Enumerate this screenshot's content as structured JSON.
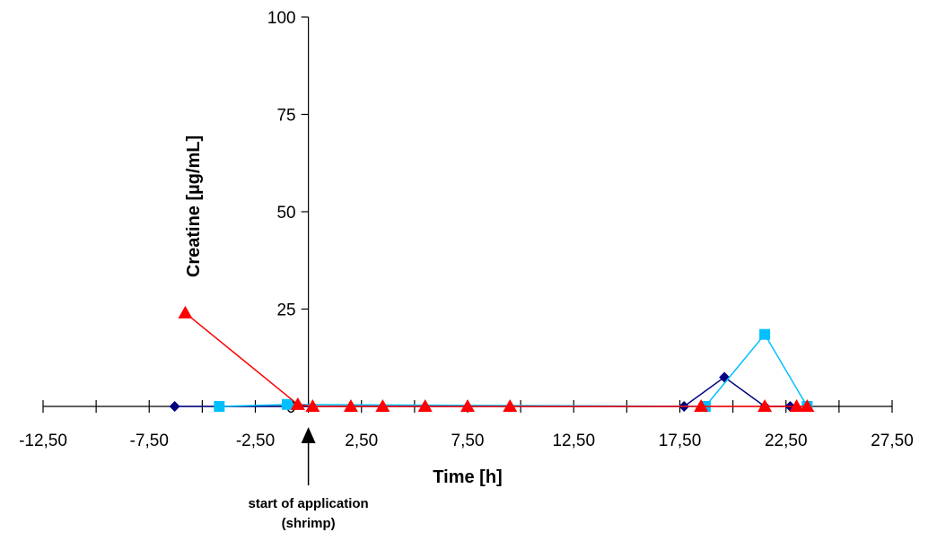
{
  "chart_data": {
    "type": "line",
    "title": "",
    "xlabel": "Time [h]",
    "ylabel": "Creatine [µg/mL]",
    "xlim": [
      -12.5,
      27.5
    ],
    "ylim": [
      0,
      100
    ],
    "x_ticks": [
      -12.5,
      -7.5,
      -2.5,
      2.5,
      7.5,
      12.5,
      17.5,
      22.5,
      27.5
    ],
    "x_tick_labels": [
      "-12,50",
      "-7,50",
      "-2,50",
      "2,50",
      "7,50",
      "12,50",
      "17,50",
      "22,50",
      "27,50"
    ],
    "x_minor_ticks": [
      -10,
      -5,
      0,
      5,
      10,
      15,
      20,
      25
    ],
    "y_ticks": [
      0,
      25,
      50,
      75,
      100
    ],
    "y_tick_labels": [
      "0",
      "25",
      "50",
      "75",
      "100"
    ],
    "grid": false,
    "legend": "none",
    "series": [
      {
        "color": "#000080",
        "marker": "diamond",
        "x": [
          -6.3,
          17.7,
          19.6,
          21.5,
          22.7
        ],
        "y": [
          0,
          0,
          7.5,
          0,
          0
        ]
      },
      {
        "color": "#00BFFF",
        "marker": "square",
        "x": [
          -4.2,
          -1.0,
          18.7,
          21.5,
          23.5
        ],
        "y": [
          0,
          0.5,
          0,
          18.5,
          0
        ]
      },
      {
        "color": "#FF0000",
        "marker": "triangle",
        "x": [
          -5.8,
          -0.5,
          0.2,
          2.0,
          3.5,
          5.5,
          7.5,
          9.5,
          18.5,
          21.5,
          23.0,
          23.5
        ],
        "y": [
          24,
          0.5,
          0,
          0,
          0,
          0,
          0,
          0,
          0,
          0,
          0,
          0
        ]
      }
    ],
    "annotations": [
      {
        "text_lines": [
          "start of application",
          "(shrimp)"
        ],
        "x": 0
      }
    ]
  }
}
